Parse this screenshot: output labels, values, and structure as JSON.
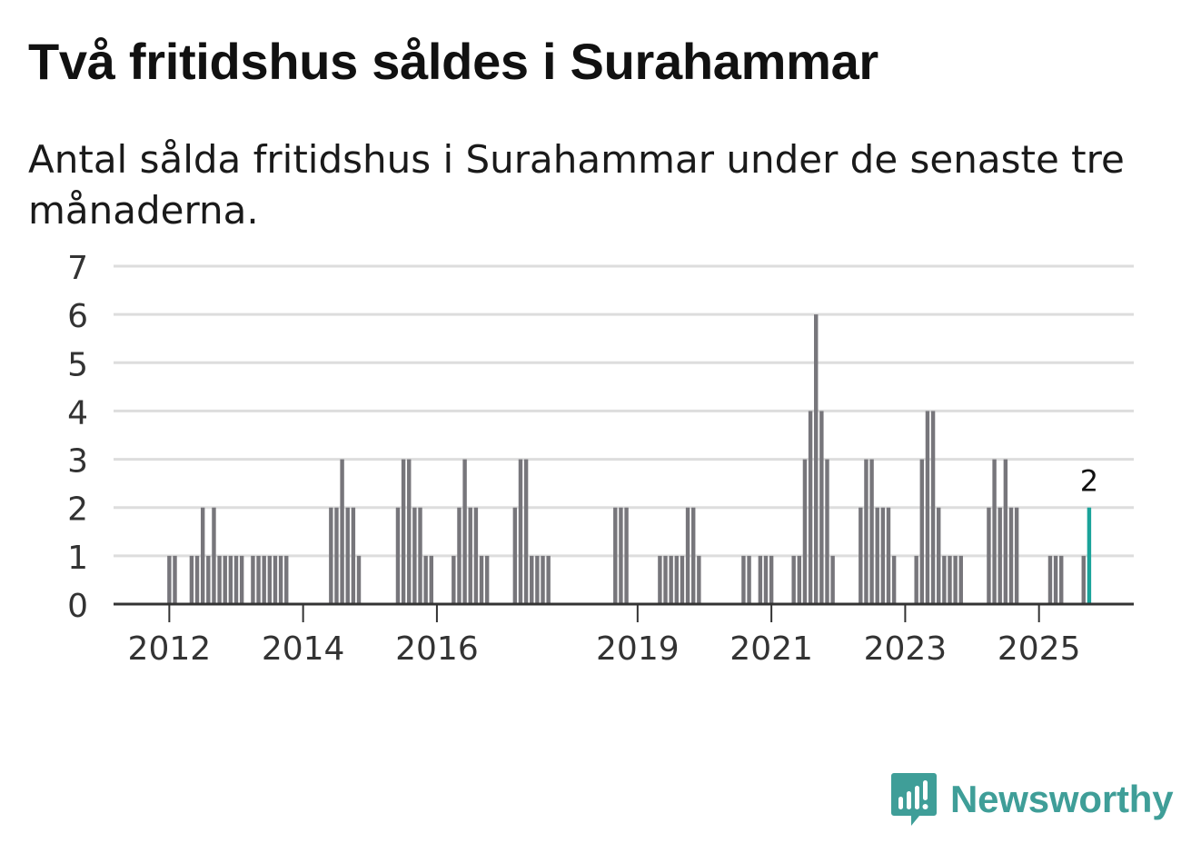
{
  "header": {
    "title": "Två fritidshus såldes i Surahammar",
    "subtitle": "Antal sålda fritidshus i Surahammar under de senaste tre månaderna."
  },
  "brand": {
    "name": "Newsworthy",
    "icon": "newsworthy-logo-icon",
    "color": "#3f9e98"
  },
  "colors": {
    "bar": "#77767b",
    "highlight": "#1aa39a",
    "grid": "#dddddd",
    "axis": "#333333"
  },
  "chart_data": {
    "type": "bar",
    "title": "",
    "xlabel": "",
    "ylabel": "",
    "ylim": [
      0,
      7
    ],
    "yticks": [
      0,
      1,
      2,
      3,
      4,
      5,
      6,
      7
    ],
    "xtick_labels": [
      {
        "label": "2012",
        "month": "2012-01"
      },
      {
        "label": "2014",
        "month": "2014-01"
      },
      {
        "label": "2016",
        "month": "2016-01"
      },
      {
        "label": "2019",
        "month": "2019-01"
      },
      {
        "label": "2021",
        "month": "2021-01"
      },
      {
        "label": "2023",
        "month": "2023-01"
      },
      {
        "label": "2025",
        "month": "2025-01"
      }
    ],
    "grid": true,
    "x_start": "2011-03",
    "x_end": "2026-06",
    "highlight": {
      "month": "2025-10",
      "value": 2,
      "label": "2"
    },
    "bars": [
      {
        "month": "2012-01",
        "value": 1
      },
      {
        "month": "2012-02",
        "value": 1
      },
      {
        "month": "2012-05",
        "value": 1
      },
      {
        "month": "2012-06",
        "value": 1
      },
      {
        "month": "2012-07",
        "value": 2
      },
      {
        "month": "2012-08",
        "value": 1
      },
      {
        "month": "2012-09",
        "value": 2
      },
      {
        "month": "2012-10",
        "value": 1
      },
      {
        "month": "2012-11",
        "value": 1
      },
      {
        "month": "2012-12",
        "value": 1
      },
      {
        "month": "2013-01",
        "value": 1
      },
      {
        "month": "2013-02",
        "value": 1
      },
      {
        "month": "2013-04",
        "value": 1
      },
      {
        "month": "2013-05",
        "value": 1
      },
      {
        "month": "2013-06",
        "value": 1
      },
      {
        "month": "2013-07",
        "value": 1
      },
      {
        "month": "2013-08",
        "value": 1
      },
      {
        "month": "2013-09",
        "value": 1
      },
      {
        "month": "2013-10",
        "value": 1
      },
      {
        "month": "2014-06",
        "value": 2
      },
      {
        "month": "2014-07",
        "value": 2
      },
      {
        "month": "2014-08",
        "value": 3
      },
      {
        "month": "2014-09",
        "value": 2
      },
      {
        "month": "2014-10",
        "value": 2
      },
      {
        "month": "2014-11",
        "value": 1
      },
      {
        "month": "2015-06",
        "value": 2
      },
      {
        "month": "2015-07",
        "value": 3
      },
      {
        "month": "2015-08",
        "value": 3
      },
      {
        "month": "2015-09",
        "value": 2
      },
      {
        "month": "2015-10",
        "value": 2
      },
      {
        "month": "2015-11",
        "value": 1
      },
      {
        "month": "2015-12",
        "value": 1
      },
      {
        "month": "2016-04",
        "value": 1
      },
      {
        "month": "2016-05",
        "value": 2
      },
      {
        "month": "2016-06",
        "value": 3
      },
      {
        "month": "2016-07",
        "value": 2
      },
      {
        "month": "2016-08",
        "value": 2
      },
      {
        "month": "2016-09",
        "value": 1
      },
      {
        "month": "2016-10",
        "value": 1
      },
      {
        "month": "2017-03",
        "value": 2
      },
      {
        "month": "2017-04",
        "value": 3
      },
      {
        "month": "2017-05",
        "value": 3
      },
      {
        "month": "2017-06",
        "value": 1
      },
      {
        "month": "2017-07",
        "value": 1
      },
      {
        "month": "2017-08",
        "value": 1
      },
      {
        "month": "2017-09",
        "value": 1
      },
      {
        "month": "2018-09",
        "value": 2
      },
      {
        "month": "2018-10",
        "value": 2
      },
      {
        "month": "2018-11",
        "value": 2
      },
      {
        "month": "2019-05",
        "value": 1
      },
      {
        "month": "2019-06",
        "value": 1
      },
      {
        "month": "2019-07",
        "value": 1
      },
      {
        "month": "2019-08",
        "value": 1
      },
      {
        "month": "2019-09",
        "value": 1
      },
      {
        "month": "2019-10",
        "value": 2
      },
      {
        "month": "2019-11",
        "value": 2
      },
      {
        "month": "2019-12",
        "value": 1
      },
      {
        "month": "2020-08",
        "value": 1
      },
      {
        "month": "2020-09",
        "value": 1
      },
      {
        "month": "2020-11",
        "value": 1
      },
      {
        "month": "2020-12",
        "value": 1
      },
      {
        "month": "2021-01",
        "value": 1
      },
      {
        "month": "2021-05",
        "value": 1
      },
      {
        "month": "2021-06",
        "value": 1
      },
      {
        "month": "2021-07",
        "value": 3
      },
      {
        "month": "2021-08",
        "value": 4
      },
      {
        "month": "2021-09",
        "value": 6
      },
      {
        "month": "2021-10",
        "value": 4
      },
      {
        "month": "2021-11",
        "value": 3
      },
      {
        "month": "2021-12",
        "value": 1
      },
      {
        "month": "2022-05",
        "value": 2
      },
      {
        "month": "2022-06",
        "value": 3
      },
      {
        "month": "2022-07",
        "value": 3
      },
      {
        "month": "2022-08",
        "value": 2
      },
      {
        "month": "2022-09",
        "value": 2
      },
      {
        "month": "2022-10",
        "value": 2
      },
      {
        "month": "2022-11",
        "value": 1
      },
      {
        "month": "2023-03",
        "value": 1
      },
      {
        "month": "2023-04",
        "value": 3
      },
      {
        "month": "2023-05",
        "value": 4
      },
      {
        "month": "2023-06",
        "value": 4
      },
      {
        "month": "2023-07",
        "value": 2
      },
      {
        "month": "2023-08",
        "value": 1
      },
      {
        "month": "2023-09",
        "value": 1
      },
      {
        "month": "2023-10",
        "value": 1
      },
      {
        "month": "2023-11",
        "value": 1
      },
      {
        "month": "2024-04",
        "value": 2
      },
      {
        "month": "2024-05",
        "value": 3
      },
      {
        "month": "2024-06",
        "value": 2
      },
      {
        "month": "2024-07",
        "value": 3
      },
      {
        "month": "2024-08",
        "value": 2
      },
      {
        "month": "2024-09",
        "value": 2
      },
      {
        "month": "2025-03",
        "value": 1
      },
      {
        "month": "2025-04",
        "value": 1
      },
      {
        "month": "2025-05",
        "value": 1
      },
      {
        "month": "2025-09",
        "value": 1
      },
      {
        "month": "2025-10",
        "value": 2
      }
    ]
  }
}
